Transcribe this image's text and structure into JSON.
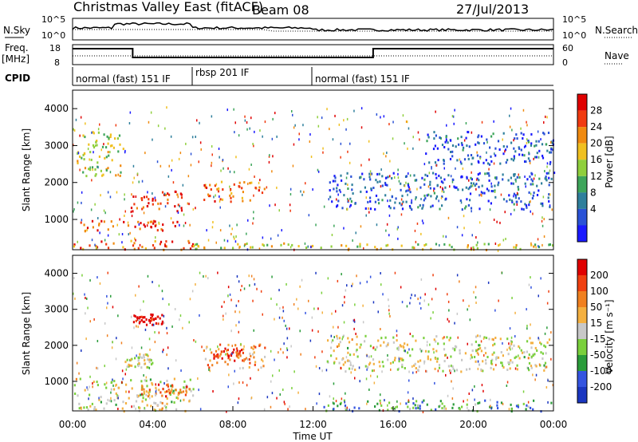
{
  "header": {
    "title": "Christmas Valley East (fitACF)",
    "beam": "Beam 08",
    "date": "27/Jul/2013"
  },
  "top_panels": {
    "nsky_label": "N.Sky",
    "nsky_ticks": [
      "10^5",
      "10^0"
    ],
    "nsearch_label": "N.Search",
    "nsearch_ticks": [
      "10^5",
      "10^0"
    ],
    "freq_label_1": "Freq.",
    "freq_label_2": "[MHz]",
    "freq_ticks": [
      "18",
      "8"
    ],
    "nave_label": "Nave",
    "nave_ticks": [
      "60",
      "0"
    ],
    "cpid_label": "CPID",
    "cpid_segments": [
      {
        "label": "normal (fast) 151 IF",
        "start_h": 0,
        "end_h": 6
      },
      {
        "label": "rbsp 201 IF",
        "start_h": 6,
        "end_h": 12
      },
      {
        "label": "normal (fast) 151 IF",
        "start_h": 12,
        "end_h": 24
      }
    ]
  },
  "chart_data": [
    {
      "type": "heatmap",
      "name": "power",
      "ylabel": "Slant Range [km]",
      "ylim": [
        180,
        4500
      ],
      "yticks": [
        "1000",
        "2000",
        "3000",
        "4000"
      ],
      "xlim_h": [
        0,
        24
      ],
      "colorbar_label": "Power [dB]",
      "colorbar_ticks": [
        "4",
        "8",
        "12",
        "16",
        "20",
        "24",
        "28"
      ],
      "colorbar_colors": [
        "#1a1aff",
        "#2a52d6",
        "#2e7f9c",
        "#3da55a",
        "#8fcf3c",
        "#f0c020",
        "#f08a10",
        "#f03a10",
        "#e00000"
      ],
      "features": [
        {
          "t0": 0.0,
          "t1": 6.0,
          "r0": 200,
          "r1": 450,
          "level": 0.8
        },
        {
          "t0": 0.3,
          "t1": 5.5,
          "r0": 700,
          "r1": 1000,
          "level": 0.85
        },
        {
          "t0": 2.8,
          "t1": 5.8,
          "r0": 1250,
          "r1": 1800,
          "level": 0.85
        },
        {
          "t0": 6.5,
          "t1": 9.6,
          "r0": 1500,
          "r1": 2050,
          "level": 0.75
        },
        {
          "t0": 0.2,
          "t1": 2.5,
          "r0": 2200,
          "r1": 3400,
          "level": 0.55
        },
        {
          "t0": 12.8,
          "t1": 24.0,
          "r0": 1300,
          "r1": 2300,
          "level": 0.2
        },
        {
          "t0": 6.0,
          "t1": 24.0,
          "r0": 200,
          "r1": 380,
          "level": 0.55
        },
        {
          "t0": 17.5,
          "t1": 24.0,
          "r0": 2500,
          "r1": 3400,
          "level": 0.2
        }
      ]
    },
    {
      "type": "heatmap",
      "name": "velocity",
      "ylabel": "Slant Range [km]",
      "ylim": [
        180,
        4500
      ],
      "yticks": [
        "1000",
        "2000",
        "3000",
        "4000"
      ],
      "xlim_h": [
        0,
        24
      ],
      "xlabel": "Time UT",
      "xticks": [
        "00:00",
        "04:00",
        "08:00",
        "12:00",
        "16:00",
        "20:00",
        "00:00"
      ],
      "colorbar_label": "Velocity [m s⁻¹]",
      "colorbar_ticks": [
        "200",
        "100",
        "50",
        "15",
        "-15",
        "-50",
        "-100",
        "-200"
      ],
      "colorbar_colors": [
        "#1a36c0",
        "#3454e0",
        "#2a9c3a",
        "#7ad03c",
        "#c8c8c8",
        "#f4b040",
        "#f08020",
        "#f04010",
        "#e00000"
      ],
      "features": [
        {
          "t0": 0.0,
          "t1": 6.0,
          "r0": 200,
          "r1": 1100,
          "level": 0.5
        },
        {
          "t0": 3.3,
          "t1": 6.0,
          "r0": 600,
          "r1": 950,
          "level": 0.75
        },
        {
          "t0": 6.5,
          "t1": 9.6,
          "r0": 1400,
          "r1": 2050,
          "level": 0.7
        },
        {
          "t0": 7.0,
          "t1": 8.5,
          "r0": 1600,
          "r1": 1950,
          "level": 0.9
        },
        {
          "t0": 2.6,
          "t1": 4.0,
          "r0": 1400,
          "r1": 1800,
          "level": 0.5
        },
        {
          "t0": 12.0,
          "t1": 24.0,
          "r0": 200,
          "r1": 500,
          "level": 0.3
        },
        {
          "t0": 12.5,
          "t1": 24.0,
          "r0": 1300,
          "r1": 2300,
          "level": 0.5
        },
        {
          "t0": 3.0,
          "t1": 4.5,
          "r0": 2600,
          "r1": 2900,
          "level": 0.95
        }
      ]
    }
  ]
}
